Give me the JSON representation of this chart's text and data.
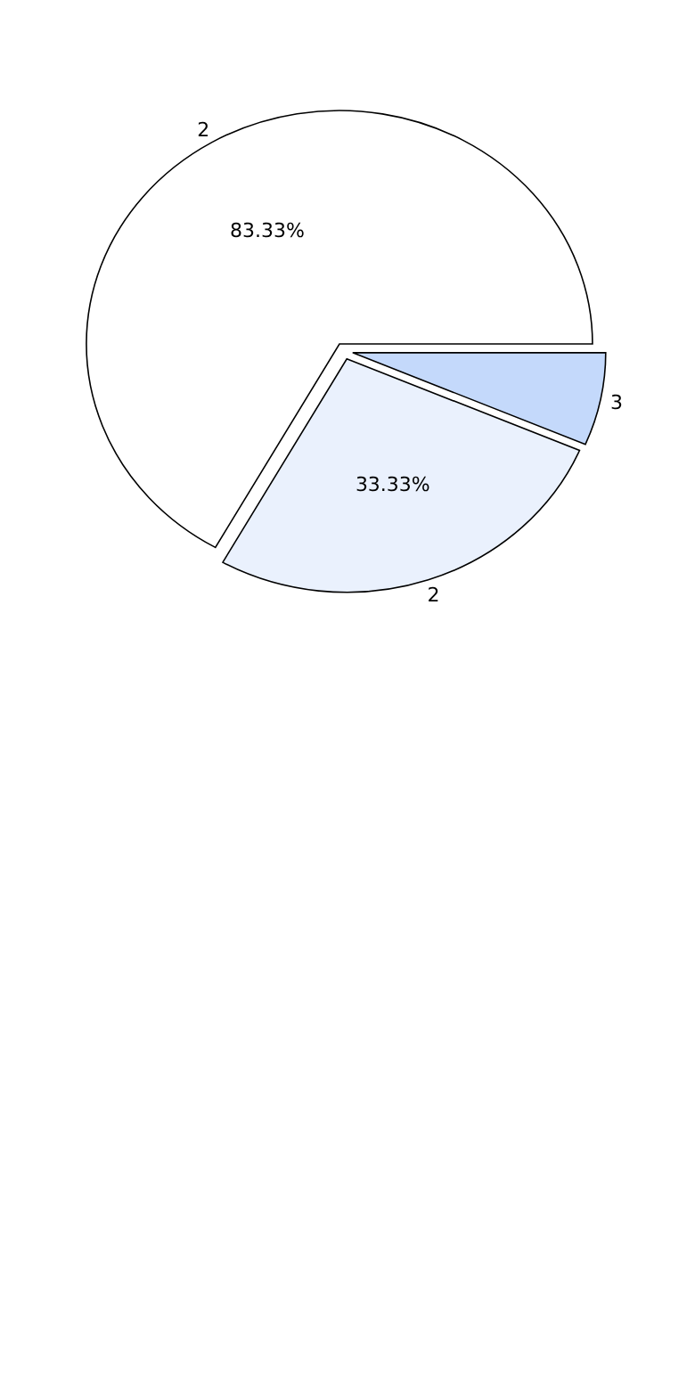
{
  "chart_data": {
    "type": "pie",
    "categories": [
      "2",
      "2",
      "3"
    ],
    "values": [
      83.33,
      33.33,
      8
    ],
    "colors": [
      "#ffffff",
      "#eaf1fd",
      "#c4d9fb"
    ],
    "value_labels": [
      "83.33%",
      "33.33%",
      null
    ]
  }
}
